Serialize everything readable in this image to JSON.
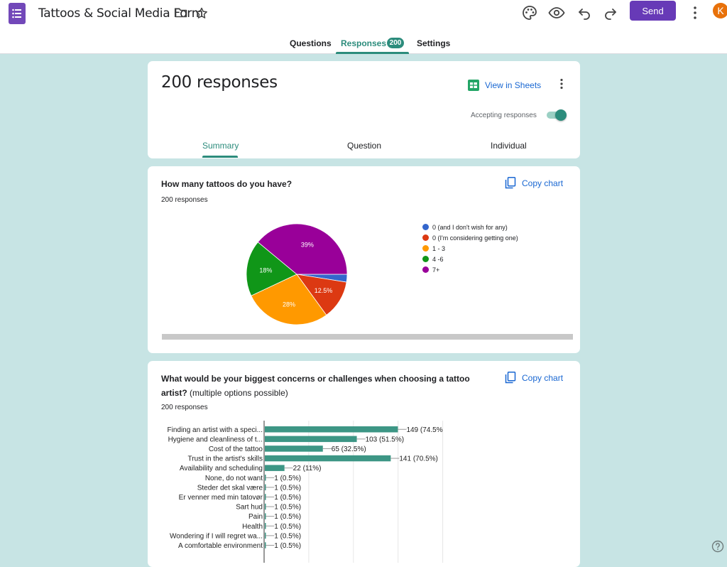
{
  "header": {
    "title": "Tattoos & Social Media Form",
    "send_label": "Send",
    "avatar_initial": "K"
  },
  "nav": {
    "tabs": [
      {
        "label": "Questions"
      },
      {
        "label": "Responses"
      },
      {
        "label": "Settings"
      }
    ],
    "responses_badge": "200"
  },
  "summary_card": {
    "title": "200 responses",
    "view_sheets_label": "View in Sheets",
    "accepting_label": "Accepting responses",
    "accepting": true,
    "tabs": [
      {
        "label": "Summary"
      },
      {
        "label": "Question"
      },
      {
        "label": "Individual"
      }
    ]
  },
  "copy_chart_label": "Copy chart",
  "charts": [
    {
      "question": "How many tattoos do you have?",
      "responses": "200 responses"
    },
    {
      "question_bold": "What would be your biggest concerns or challenges when choosing a tattoo artist?",
      "question_note": " (multiple options possible)",
      "responses": "200 responses"
    }
  ],
  "chart_data": [
    {
      "type": "pie",
      "slices": [
        {
          "label": "0 (and I don't wish for any)",
          "value": 2.5,
          "display": "",
          "color": "#3366cc"
        },
        {
          "label": "0 (I'm considering getting one)",
          "value": 12.5,
          "display": "12.5%",
          "color": "#dc3912"
        },
        {
          "label": "1 - 3",
          "value": 28,
          "display": "28%",
          "color": "#ff9900"
        },
        {
          "label": "4 -6",
          "value": 18,
          "display": "18%",
          "color": "#109618"
        },
        {
          "label": "7+",
          "value": 39,
          "display": "39%",
          "color": "#990099"
        }
      ]
    },
    {
      "type": "bar",
      "orientation": "horizontal",
      "color": "#3d9685",
      "xlim": [
        0,
        200
      ],
      "grid": true,
      "categories": [
        {
          "label": "Finding an artist with a speci...",
          "value": 149,
          "display": "149 (74.5%"
        },
        {
          "label": "Hygiene and cleanliness of t...",
          "value": 103,
          "display": "103 (51.5%)"
        },
        {
          "label": "Cost of the tattoo",
          "value": 65,
          "display": "65 (32.5%)"
        },
        {
          "label": "Trust in the artist's skills",
          "value": 141,
          "display": "141 (70.5%)"
        },
        {
          "label": "Availability and scheduling",
          "value": 22,
          "display": "22 (11%)"
        },
        {
          "label": "None, do not want",
          "value": 1,
          "display": "1 (0.5%)"
        },
        {
          "label": "Steder det skal være",
          "value": 1,
          "display": "1 (0.5%)"
        },
        {
          "label": "Er venner med min tatovør",
          "value": 1,
          "display": "1 (0.5%)"
        },
        {
          "label": "Sart hud",
          "value": 1,
          "display": "1 (0.5%)"
        },
        {
          "label": "Pain",
          "value": 1,
          "display": "1 (0.5%)"
        },
        {
          "label": "Health",
          "value": 1,
          "display": "1 (0.5%)"
        },
        {
          "label": "Wondering if I will regret wa...",
          "value": 1,
          "display": "1 (0.5%)"
        },
        {
          "label": "A comfortable environment",
          "value": 1,
          "display": "1 (0.5%)"
        }
      ]
    }
  ]
}
